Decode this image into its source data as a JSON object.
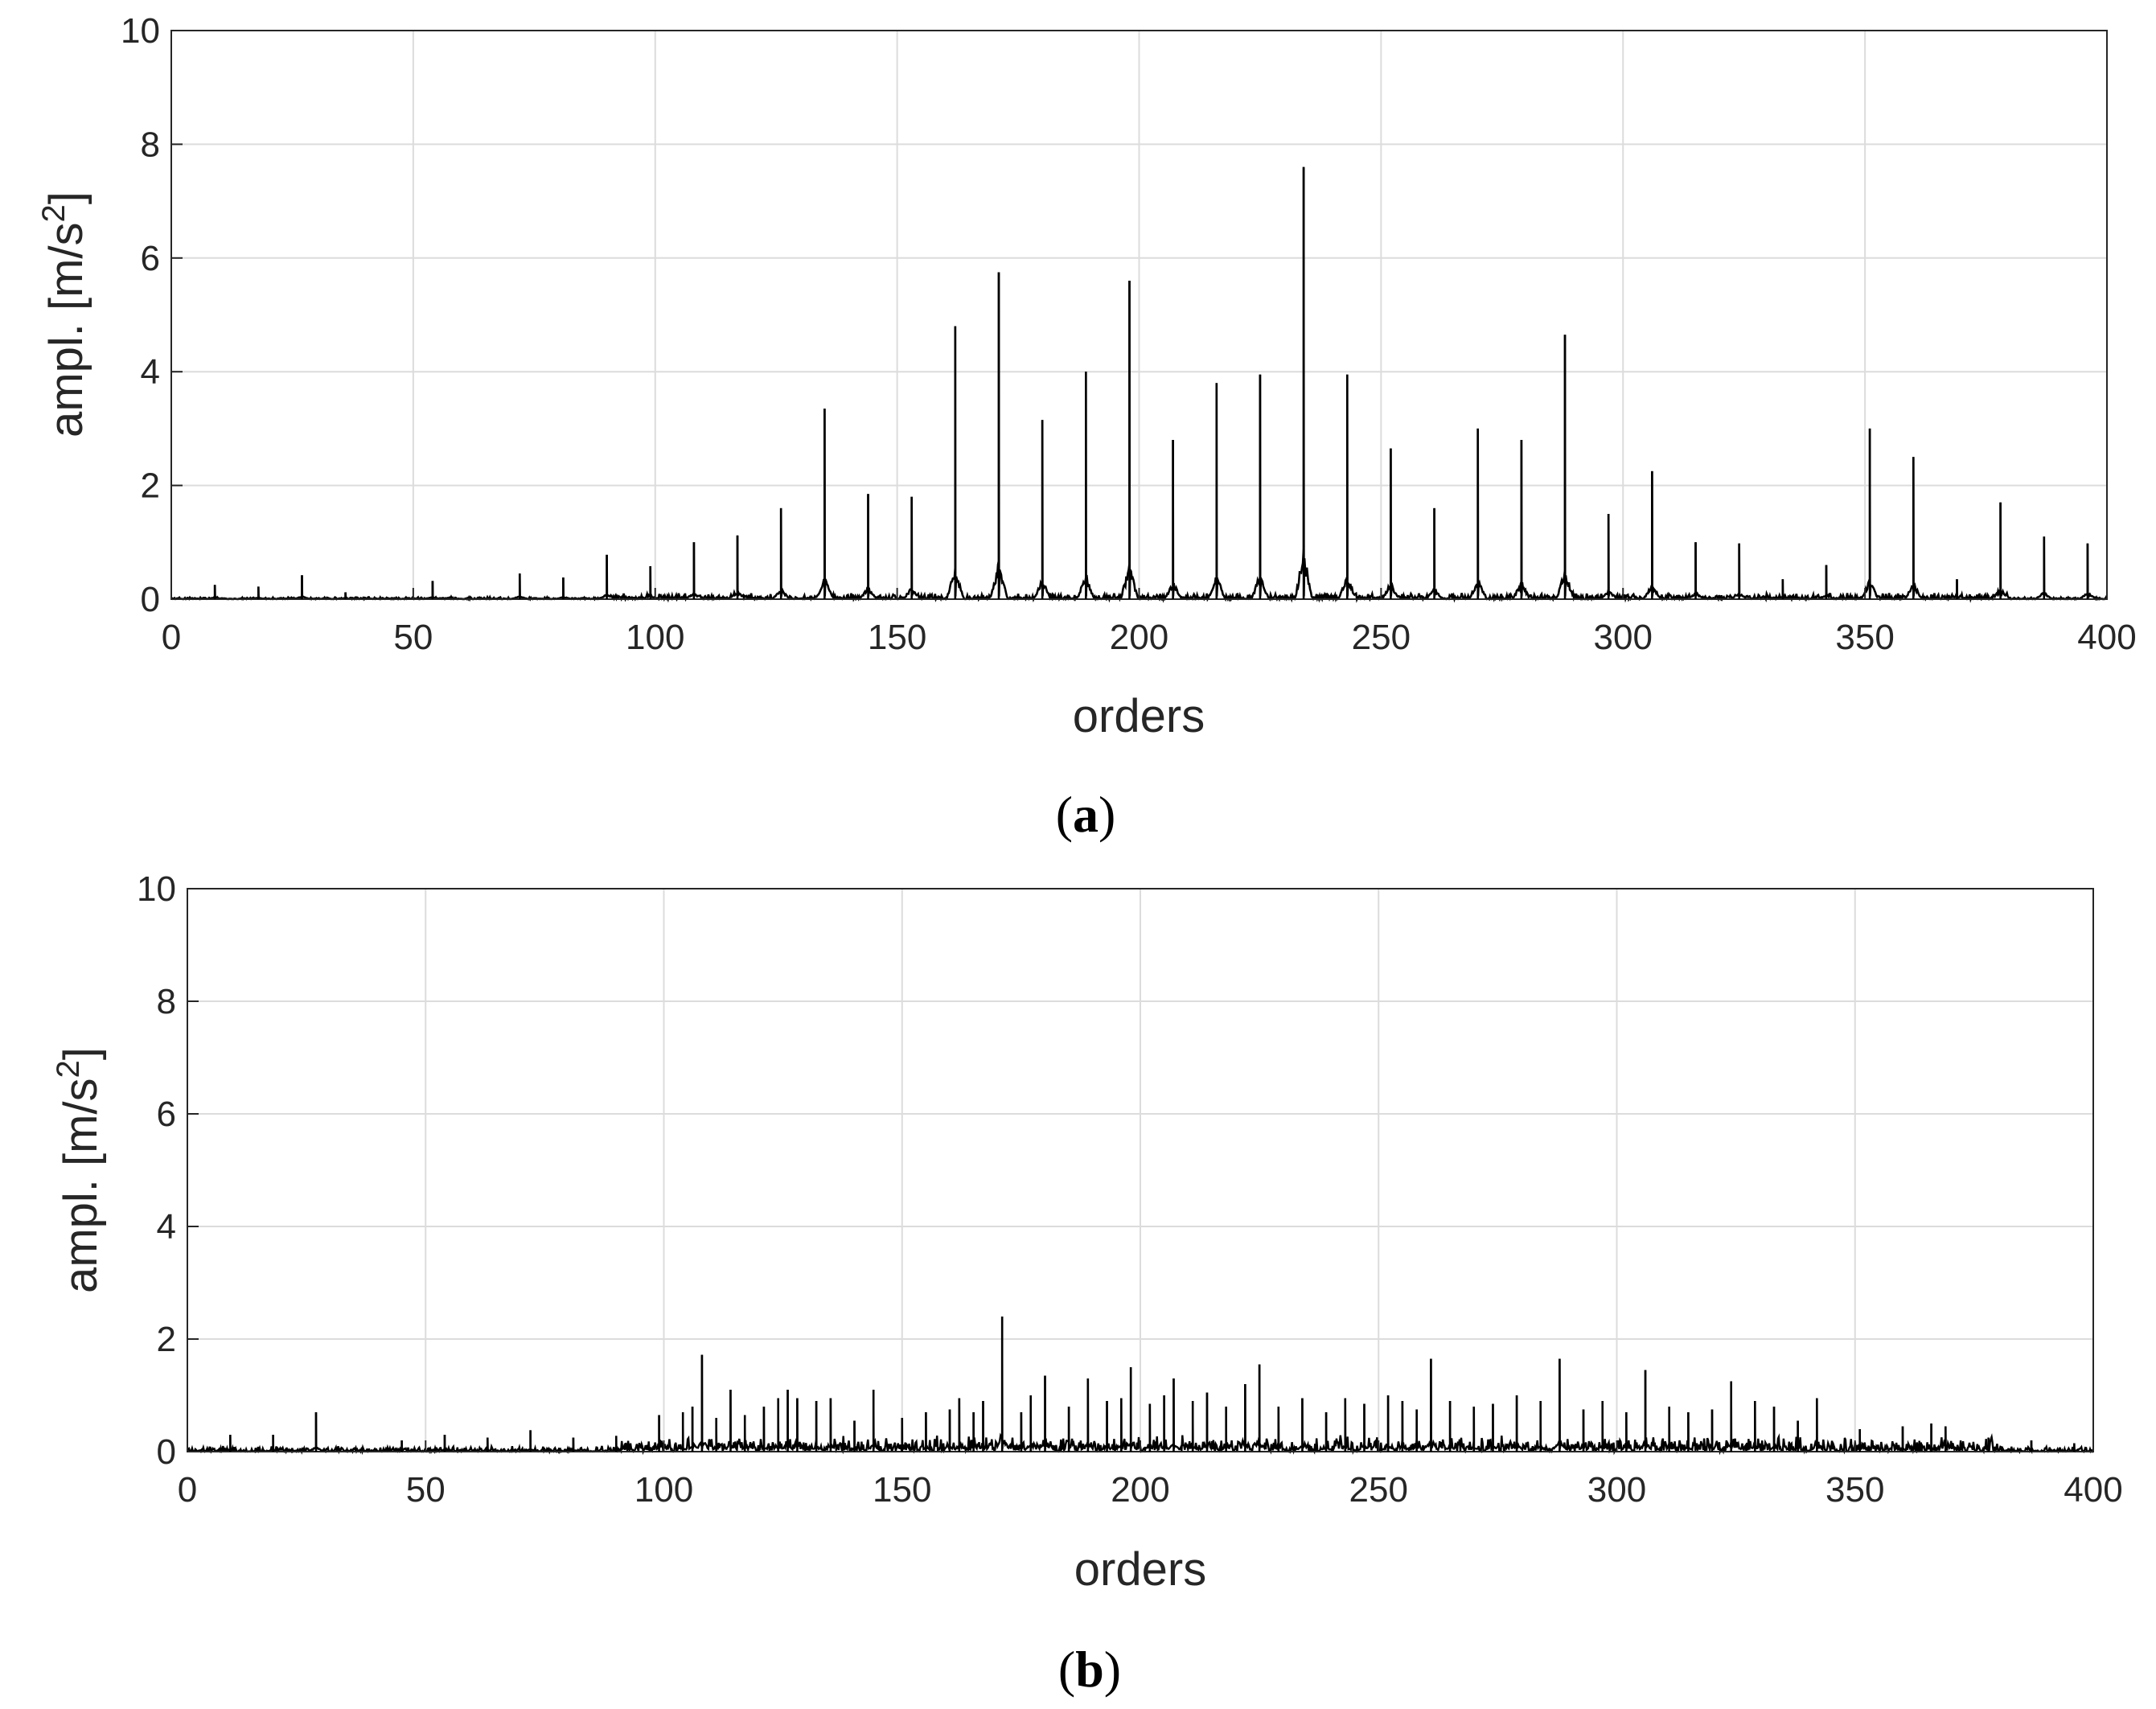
{
  "chart_data": [
    {
      "type": "line",
      "panel_label": "a",
      "xlabel": "orders",
      "ylabel": "ampl. [m/s",
      "ylabel_sup": "2",
      "ylabel_end": "]",
      "xlim": [
        0,
        400
      ],
      "ylim": [
        0,
        10
      ],
      "xticks": [
        "0",
        "50",
        "100",
        "150",
        "200",
        "250",
        "300",
        "350",
        "400"
      ],
      "yticks": [
        "0",
        "2",
        "4",
        "6",
        "8",
        "10"
      ],
      "grid": true,
      "line_color": "#000000",
      "noise_level": 0.04,
      "peaks": [
        [
          9,
          0.25
        ],
        [
          18,
          0.22
        ],
        [
          27,
          0.42
        ],
        [
          36,
          0.12
        ],
        [
          54,
          0.32
        ],
        [
          72,
          0.45
        ],
        [
          81,
          0.38
        ],
        [
          90,
          0.78
        ],
        [
          99,
          0.58
        ],
        [
          108,
          1.0
        ],
        [
          117,
          1.12
        ],
        [
          126,
          1.6
        ],
        [
          135,
          3.35
        ],
        [
          144,
          1.85
        ],
        [
          153,
          1.8
        ],
        [
          162,
          4.8
        ],
        [
          171,
          5.75
        ],
        [
          180,
          3.15
        ],
        [
          189,
          4.0
        ],
        [
          198,
          5.6
        ],
        [
          207,
          2.8
        ],
        [
          216,
          3.8
        ],
        [
          225,
          3.95
        ],
        [
          234,
          7.6
        ],
        [
          243,
          3.95
        ],
        [
          252,
          2.65
        ],
        [
          261,
          1.6
        ],
        [
          270,
          3.0
        ],
        [
          279,
          2.8
        ],
        [
          288,
          4.65
        ],
        [
          297,
          1.5
        ],
        [
          306,
          2.25
        ],
        [
          315,
          1.0
        ],
        [
          324,
          0.98
        ],
        [
          333,
          0.35
        ],
        [
          342,
          0.6
        ],
        [
          351,
          3.0
        ],
        [
          360,
          2.5
        ],
        [
          369,
          0.35
        ],
        [
          378,
          1.7
        ],
        [
          387,
          1.1
        ],
        [
          396,
          0.98
        ]
      ]
    },
    {
      "type": "line",
      "panel_label": "b",
      "xlabel": "orders",
      "ylabel": "ampl. [m/s",
      "ylabel_sup": "2",
      "ylabel_end": "]",
      "xlim": [
        0,
        400
      ],
      "ylim": [
        0,
        10
      ],
      "xticks": [
        "0",
        "50",
        "100",
        "150",
        "200",
        "250",
        "300",
        "350",
        "400"
      ],
      "yticks": [
        "0",
        "2",
        "4",
        "6",
        "8",
        "10"
      ],
      "grid": true,
      "line_color": "#000000",
      "noise_level": 0.1,
      "peaks": [
        [
          9,
          0.3
        ],
        [
          18,
          0.3
        ],
        [
          27,
          0.7
        ],
        [
          45,
          0.2
        ],
        [
          54,
          0.3
        ],
        [
          63,
          0.25
        ],
        [
          72,
          0.38
        ],
        [
          81,
          0.25
        ],
        [
          90,
          0.28
        ],
        [
          99,
          0.65
        ],
        [
          104,
          0.7
        ],
        [
          106,
          0.8
        ],
        [
          108,
          1.72
        ],
        [
          111,
          0.6
        ],
        [
          114,
          1.1
        ],
        [
          117,
          0.65
        ],
        [
          121,
          0.8
        ],
        [
          124,
          0.95
        ],
        [
          126,
          1.1
        ],
        [
          128,
          0.95
        ],
        [
          132,
          0.9
        ],
        [
          135,
          0.95
        ],
        [
          140,
          0.55
        ],
        [
          144,
          1.1
        ],
        [
          150,
          0.6
        ],
        [
          155,
          0.7
        ],
        [
          160,
          0.75
        ],
        [
          162,
          0.95
        ],
        [
          165,
          0.7
        ],
        [
          167,
          0.9
        ],
        [
          171,
          2.4
        ],
        [
          175,
          0.7
        ],
        [
          177,
          1.0
        ],
        [
          180,
          1.35
        ],
        [
          185,
          0.8
        ],
        [
          189,
          1.3
        ],
        [
          193,
          0.9
        ],
        [
          196,
          0.95
        ],
        [
          198,
          1.5
        ],
        [
          202,
          0.85
        ],
        [
          205,
          1.0
        ],
        [
          207,
          1.3
        ],
        [
          211,
          0.9
        ],
        [
          214,
          1.05
        ],
        [
          218,
          0.8
        ],
        [
          222,
          1.2
        ],
        [
          225,
          1.55
        ],
        [
          229,
          0.8
        ],
        [
          234,
          0.95
        ],
        [
          239,
          0.7
        ],
        [
          243,
          0.95
        ],
        [
          247,
          0.85
        ],
        [
          252,
          1.0
        ],
        [
          255,
          0.9
        ],
        [
          258,
          0.75
        ],
        [
          261,
          1.65
        ],
        [
          265,
          0.9
        ],
        [
          270,
          0.8
        ],
        [
          274,
          0.85
        ],
        [
          279,
          1.0
        ],
        [
          284,
          0.9
        ],
        [
          288,
          1.65
        ],
        [
          293,
          0.75
        ],
        [
          297,
          0.9
        ],
        [
          302,
          0.7
        ],
        [
          306,
          1.45
        ],
        [
          311,
          0.8
        ],
        [
          315,
          0.7
        ],
        [
          320,
          0.75
        ],
        [
          324,
          1.25
        ],
        [
          329,
          0.9
        ],
        [
          333,
          0.8
        ],
        [
          338,
          0.55
        ],
        [
          342,
          0.95
        ],
        [
          351,
          0.4
        ],
        [
          360,
          0.45
        ],
        [
          366,
          0.5
        ],
        [
          369,
          0.45
        ],
        [
          378,
          0.25
        ],
        [
          387,
          0.2
        ],
        [
          396,
          0.15
        ]
      ]
    }
  ]
}
